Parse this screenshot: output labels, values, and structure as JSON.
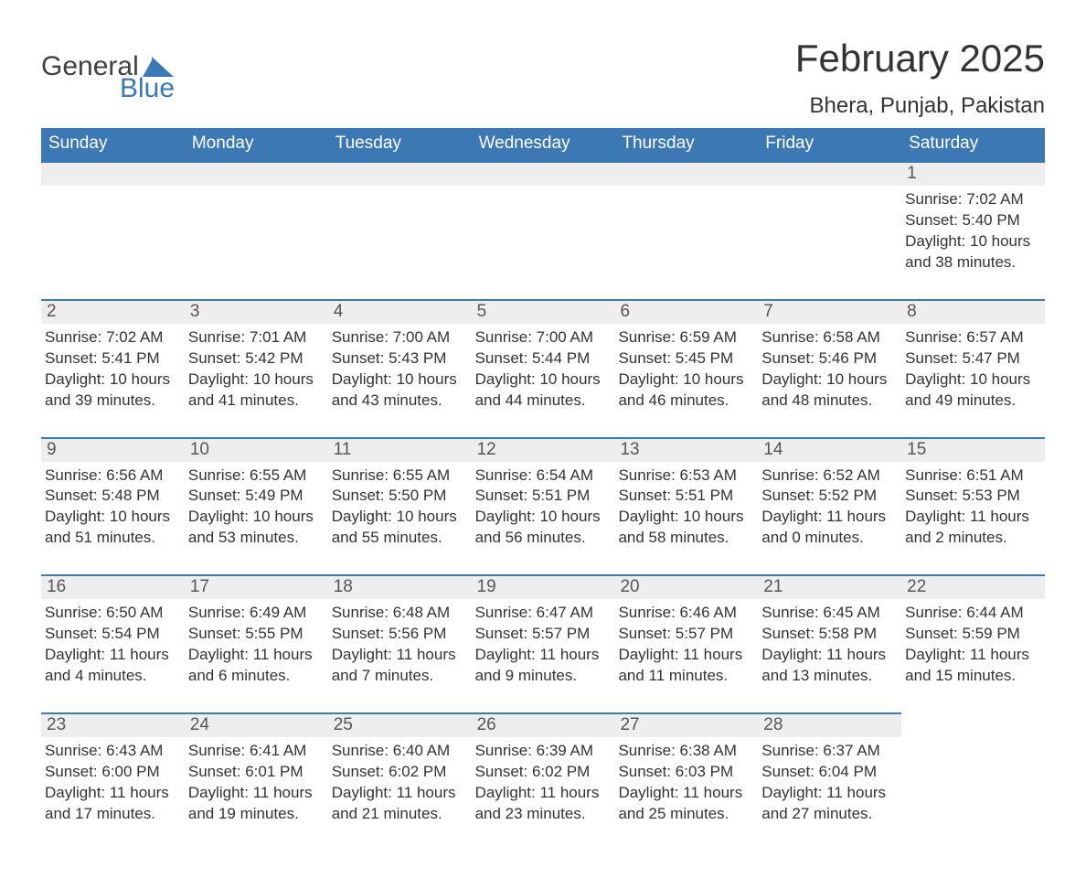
{
  "logo": {
    "word1": "General",
    "word2": "Blue"
  },
  "title": "February 2025",
  "location": "Bhera, Punjab, Pakistan",
  "colors": {
    "header_bg": "#3b78b4",
    "header_text": "#ffffff",
    "day_bar_bg": "#eeeeee",
    "day_bar_border": "#3b78b4",
    "body_text": "#333333",
    "page_bg": "#ffffff"
  },
  "weekdays": [
    "Sunday",
    "Monday",
    "Tuesday",
    "Wednesday",
    "Thursday",
    "Friday",
    "Saturday"
  ],
  "weeks": [
    [
      {
        "empty": true
      },
      {
        "empty": true
      },
      {
        "empty": true
      },
      {
        "empty": true
      },
      {
        "empty": true
      },
      {
        "empty": true
      },
      {
        "day": "1",
        "sunrise": "Sunrise: 7:02 AM",
        "sunset": "Sunset: 5:40 PM",
        "day1": "Daylight: 10 hours",
        "day2": "and 38 minutes."
      }
    ],
    [
      {
        "day": "2",
        "sunrise": "Sunrise: 7:02 AM",
        "sunset": "Sunset: 5:41 PM",
        "day1": "Daylight: 10 hours",
        "day2": "and 39 minutes."
      },
      {
        "day": "3",
        "sunrise": "Sunrise: 7:01 AM",
        "sunset": "Sunset: 5:42 PM",
        "day1": "Daylight: 10 hours",
        "day2": "and 41 minutes."
      },
      {
        "day": "4",
        "sunrise": "Sunrise: 7:00 AM",
        "sunset": "Sunset: 5:43 PM",
        "day1": "Daylight: 10 hours",
        "day2": "and 43 minutes."
      },
      {
        "day": "5",
        "sunrise": "Sunrise: 7:00 AM",
        "sunset": "Sunset: 5:44 PM",
        "day1": "Daylight: 10 hours",
        "day2": "and 44 minutes."
      },
      {
        "day": "6",
        "sunrise": "Sunrise: 6:59 AM",
        "sunset": "Sunset: 5:45 PM",
        "day1": "Daylight: 10 hours",
        "day2": "and 46 minutes."
      },
      {
        "day": "7",
        "sunrise": "Sunrise: 6:58 AM",
        "sunset": "Sunset: 5:46 PM",
        "day1": "Daylight: 10 hours",
        "day2": "and 48 minutes."
      },
      {
        "day": "8",
        "sunrise": "Sunrise: 6:57 AM",
        "sunset": "Sunset: 5:47 PM",
        "day1": "Daylight: 10 hours",
        "day2": "and 49 minutes."
      }
    ],
    [
      {
        "day": "9",
        "sunrise": "Sunrise: 6:56 AM",
        "sunset": "Sunset: 5:48 PM",
        "day1": "Daylight: 10 hours",
        "day2": "and 51 minutes."
      },
      {
        "day": "10",
        "sunrise": "Sunrise: 6:55 AM",
        "sunset": "Sunset: 5:49 PM",
        "day1": "Daylight: 10 hours",
        "day2": "and 53 minutes."
      },
      {
        "day": "11",
        "sunrise": "Sunrise: 6:55 AM",
        "sunset": "Sunset: 5:50 PM",
        "day1": "Daylight: 10 hours",
        "day2": "and 55 minutes."
      },
      {
        "day": "12",
        "sunrise": "Sunrise: 6:54 AM",
        "sunset": "Sunset: 5:51 PM",
        "day1": "Daylight: 10 hours",
        "day2": "and 56 minutes."
      },
      {
        "day": "13",
        "sunrise": "Sunrise: 6:53 AM",
        "sunset": "Sunset: 5:51 PM",
        "day1": "Daylight: 10 hours",
        "day2": "and 58 minutes."
      },
      {
        "day": "14",
        "sunrise": "Sunrise: 6:52 AM",
        "sunset": "Sunset: 5:52 PM",
        "day1": "Daylight: 11 hours",
        "day2": "and 0 minutes."
      },
      {
        "day": "15",
        "sunrise": "Sunrise: 6:51 AM",
        "sunset": "Sunset: 5:53 PM",
        "day1": "Daylight: 11 hours",
        "day2": "and 2 minutes."
      }
    ],
    [
      {
        "day": "16",
        "sunrise": "Sunrise: 6:50 AM",
        "sunset": "Sunset: 5:54 PM",
        "day1": "Daylight: 11 hours",
        "day2": "and 4 minutes."
      },
      {
        "day": "17",
        "sunrise": "Sunrise: 6:49 AM",
        "sunset": "Sunset: 5:55 PM",
        "day1": "Daylight: 11 hours",
        "day2": "and 6 minutes."
      },
      {
        "day": "18",
        "sunrise": "Sunrise: 6:48 AM",
        "sunset": "Sunset: 5:56 PM",
        "day1": "Daylight: 11 hours",
        "day2": "and 7 minutes."
      },
      {
        "day": "19",
        "sunrise": "Sunrise: 6:47 AM",
        "sunset": "Sunset: 5:57 PM",
        "day1": "Daylight: 11 hours",
        "day2": "and 9 minutes."
      },
      {
        "day": "20",
        "sunrise": "Sunrise: 6:46 AM",
        "sunset": "Sunset: 5:57 PM",
        "day1": "Daylight: 11 hours",
        "day2": "and 11 minutes."
      },
      {
        "day": "21",
        "sunrise": "Sunrise: 6:45 AM",
        "sunset": "Sunset: 5:58 PM",
        "day1": "Daylight: 11 hours",
        "day2": "and 13 minutes."
      },
      {
        "day": "22",
        "sunrise": "Sunrise: 6:44 AM",
        "sunset": "Sunset: 5:59 PM",
        "day1": "Daylight: 11 hours",
        "day2": "and 15 minutes."
      }
    ],
    [
      {
        "day": "23",
        "sunrise": "Sunrise: 6:43 AM",
        "sunset": "Sunset: 6:00 PM",
        "day1": "Daylight: 11 hours",
        "day2": "and 17 minutes."
      },
      {
        "day": "24",
        "sunrise": "Sunrise: 6:41 AM",
        "sunset": "Sunset: 6:01 PM",
        "day1": "Daylight: 11 hours",
        "day2": "and 19 minutes."
      },
      {
        "day": "25",
        "sunrise": "Sunrise: 6:40 AM",
        "sunset": "Sunset: 6:02 PM",
        "day1": "Daylight: 11 hours",
        "day2": "and 21 minutes."
      },
      {
        "day": "26",
        "sunrise": "Sunrise: 6:39 AM",
        "sunset": "Sunset: 6:02 PM",
        "day1": "Daylight: 11 hours",
        "day2": "and 23 minutes."
      },
      {
        "day": "27",
        "sunrise": "Sunrise: 6:38 AM",
        "sunset": "Sunset: 6:03 PM",
        "day1": "Daylight: 11 hours",
        "day2": "and 25 minutes."
      },
      {
        "day": "28",
        "sunrise": "Sunrise: 6:37 AM",
        "sunset": "Sunset: 6:04 PM",
        "day1": "Daylight: 11 hours",
        "day2": "and 27 minutes."
      },
      {
        "empty": true,
        "noBar": true
      }
    ]
  ]
}
